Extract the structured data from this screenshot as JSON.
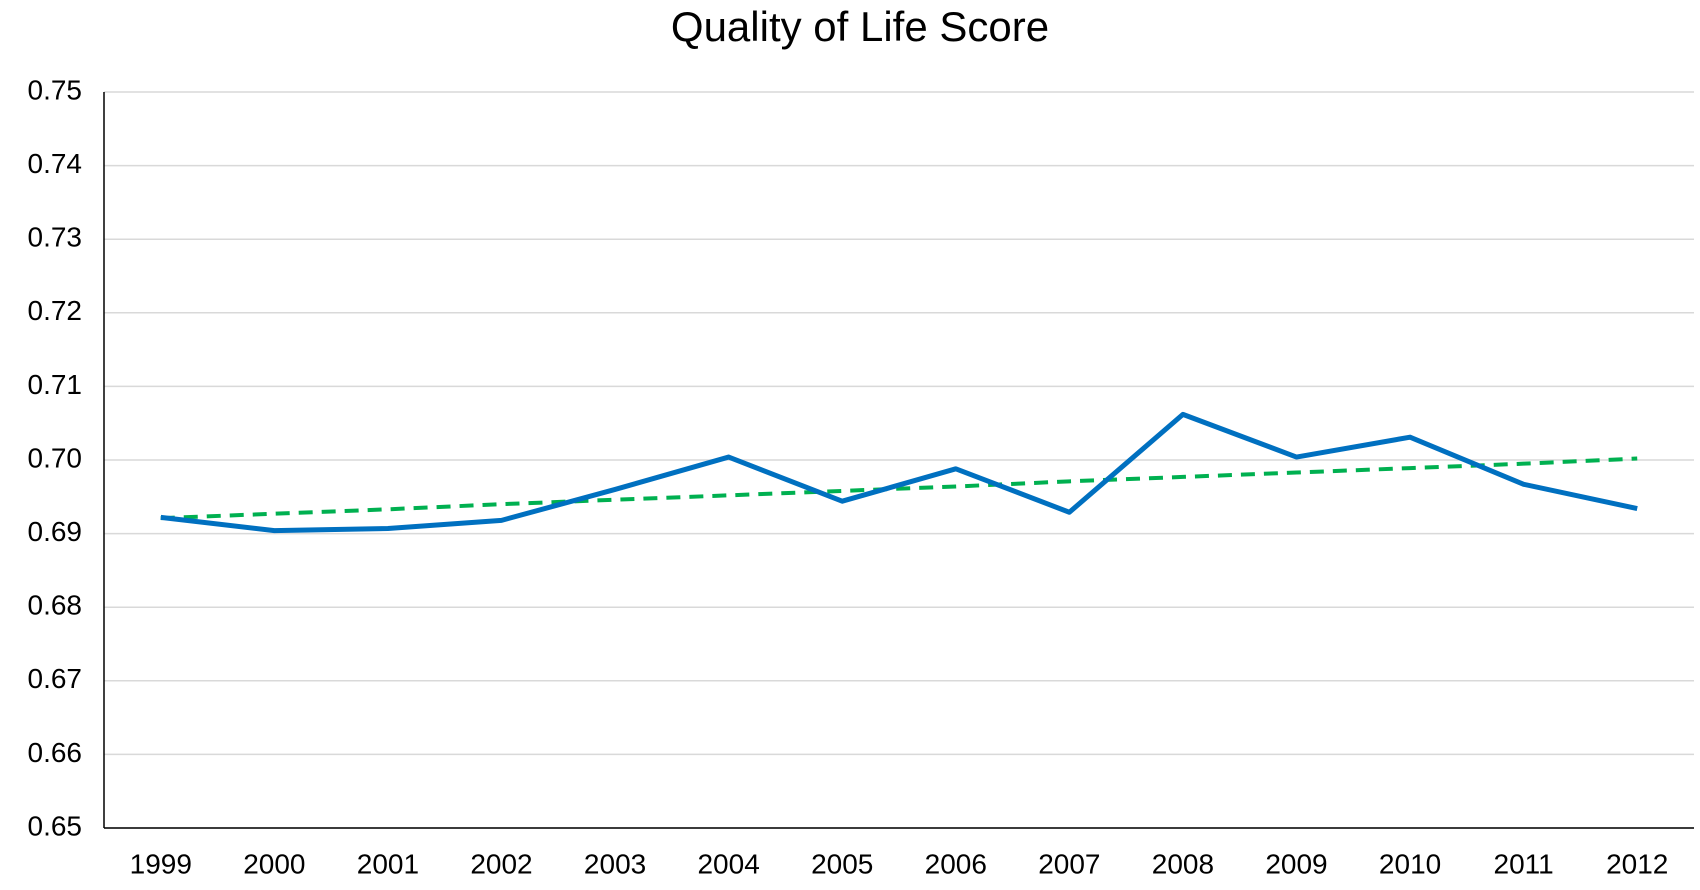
{
  "chart_data": {
    "type": "line",
    "title": "Quality of Life Score",
    "categories": [
      "1999",
      "2000",
      "2001",
      "2002",
      "2003",
      "2004",
      "2005",
      "2006",
      "2007",
      "2008",
      "2009",
      "2010",
      "2011",
      "2012"
    ],
    "values": [
      0.6922,
      0.6904,
      0.6907,
      0.6918,
      0.696,
      0.7004,
      0.6944,
      0.6988,
      0.6929,
      0.7062,
      0.7004,
      0.7031,
      0.6967,
      0.6934
    ],
    "color": "#0070c0",
    "trendline": {
      "color": "#00b050",
      "values": [
        0.6921,
        0.6927,
        0.6933,
        0.694,
        0.6946,
        0.6952,
        0.6958,
        0.6964,
        0.6971,
        0.6977,
        0.6983,
        0.6989,
        0.6995,
        0.7002
      ]
    },
    "ylim": [
      0.65,
      0.75
    ],
    "yticks": [
      0.65,
      0.66,
      0.67,
      0.68,
      0.69,
      {
        "value": 0.7,
        "label": "0.70"
      },
      0.71,
      0.72,
      0.73,
      0.74,
      0.75
    ],
    "grid": true
  }
}
